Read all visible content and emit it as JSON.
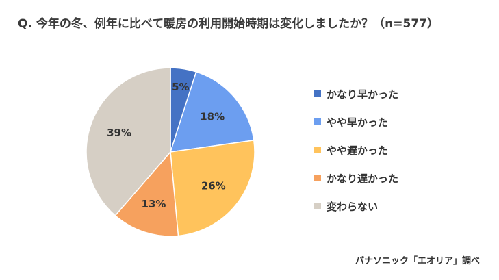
{
  "title": "Q. 今年の冬、例年に比べて暖房の利用開始時期は変化しましたか？（n=577）",
  "credit": "パナソニック「エオリア」調べ",
  "chart_data": {
    "type": "pie",
    "start": "12 o'clock",
    "direction": "clockwise",
    "legend_position": "right",
    "slices": [
      {
        "label": "かなり早かった",
        "value": 5,
        "display": "5%",
        "color": "#4472C4"
      },
      {
        "label": "やや早かった",
        "value": 18,
        "display": "18%",
        "color": "#6C9EF0"
      },
      {
        "label": "やや遅かった",
        "value": 26,
        "display": "26%",
        "color": "#FFC35C"
      },
      {
        "label": "かなり遅かった",
        "value": 13,
        "display": "13%",
        "color": "#F6A15E"
      },
      {
        "label": "変わらない",
        "value": 39,
        "display": "39%",
        "color": "#D6CFC5"
      }
    ]
  }
}
